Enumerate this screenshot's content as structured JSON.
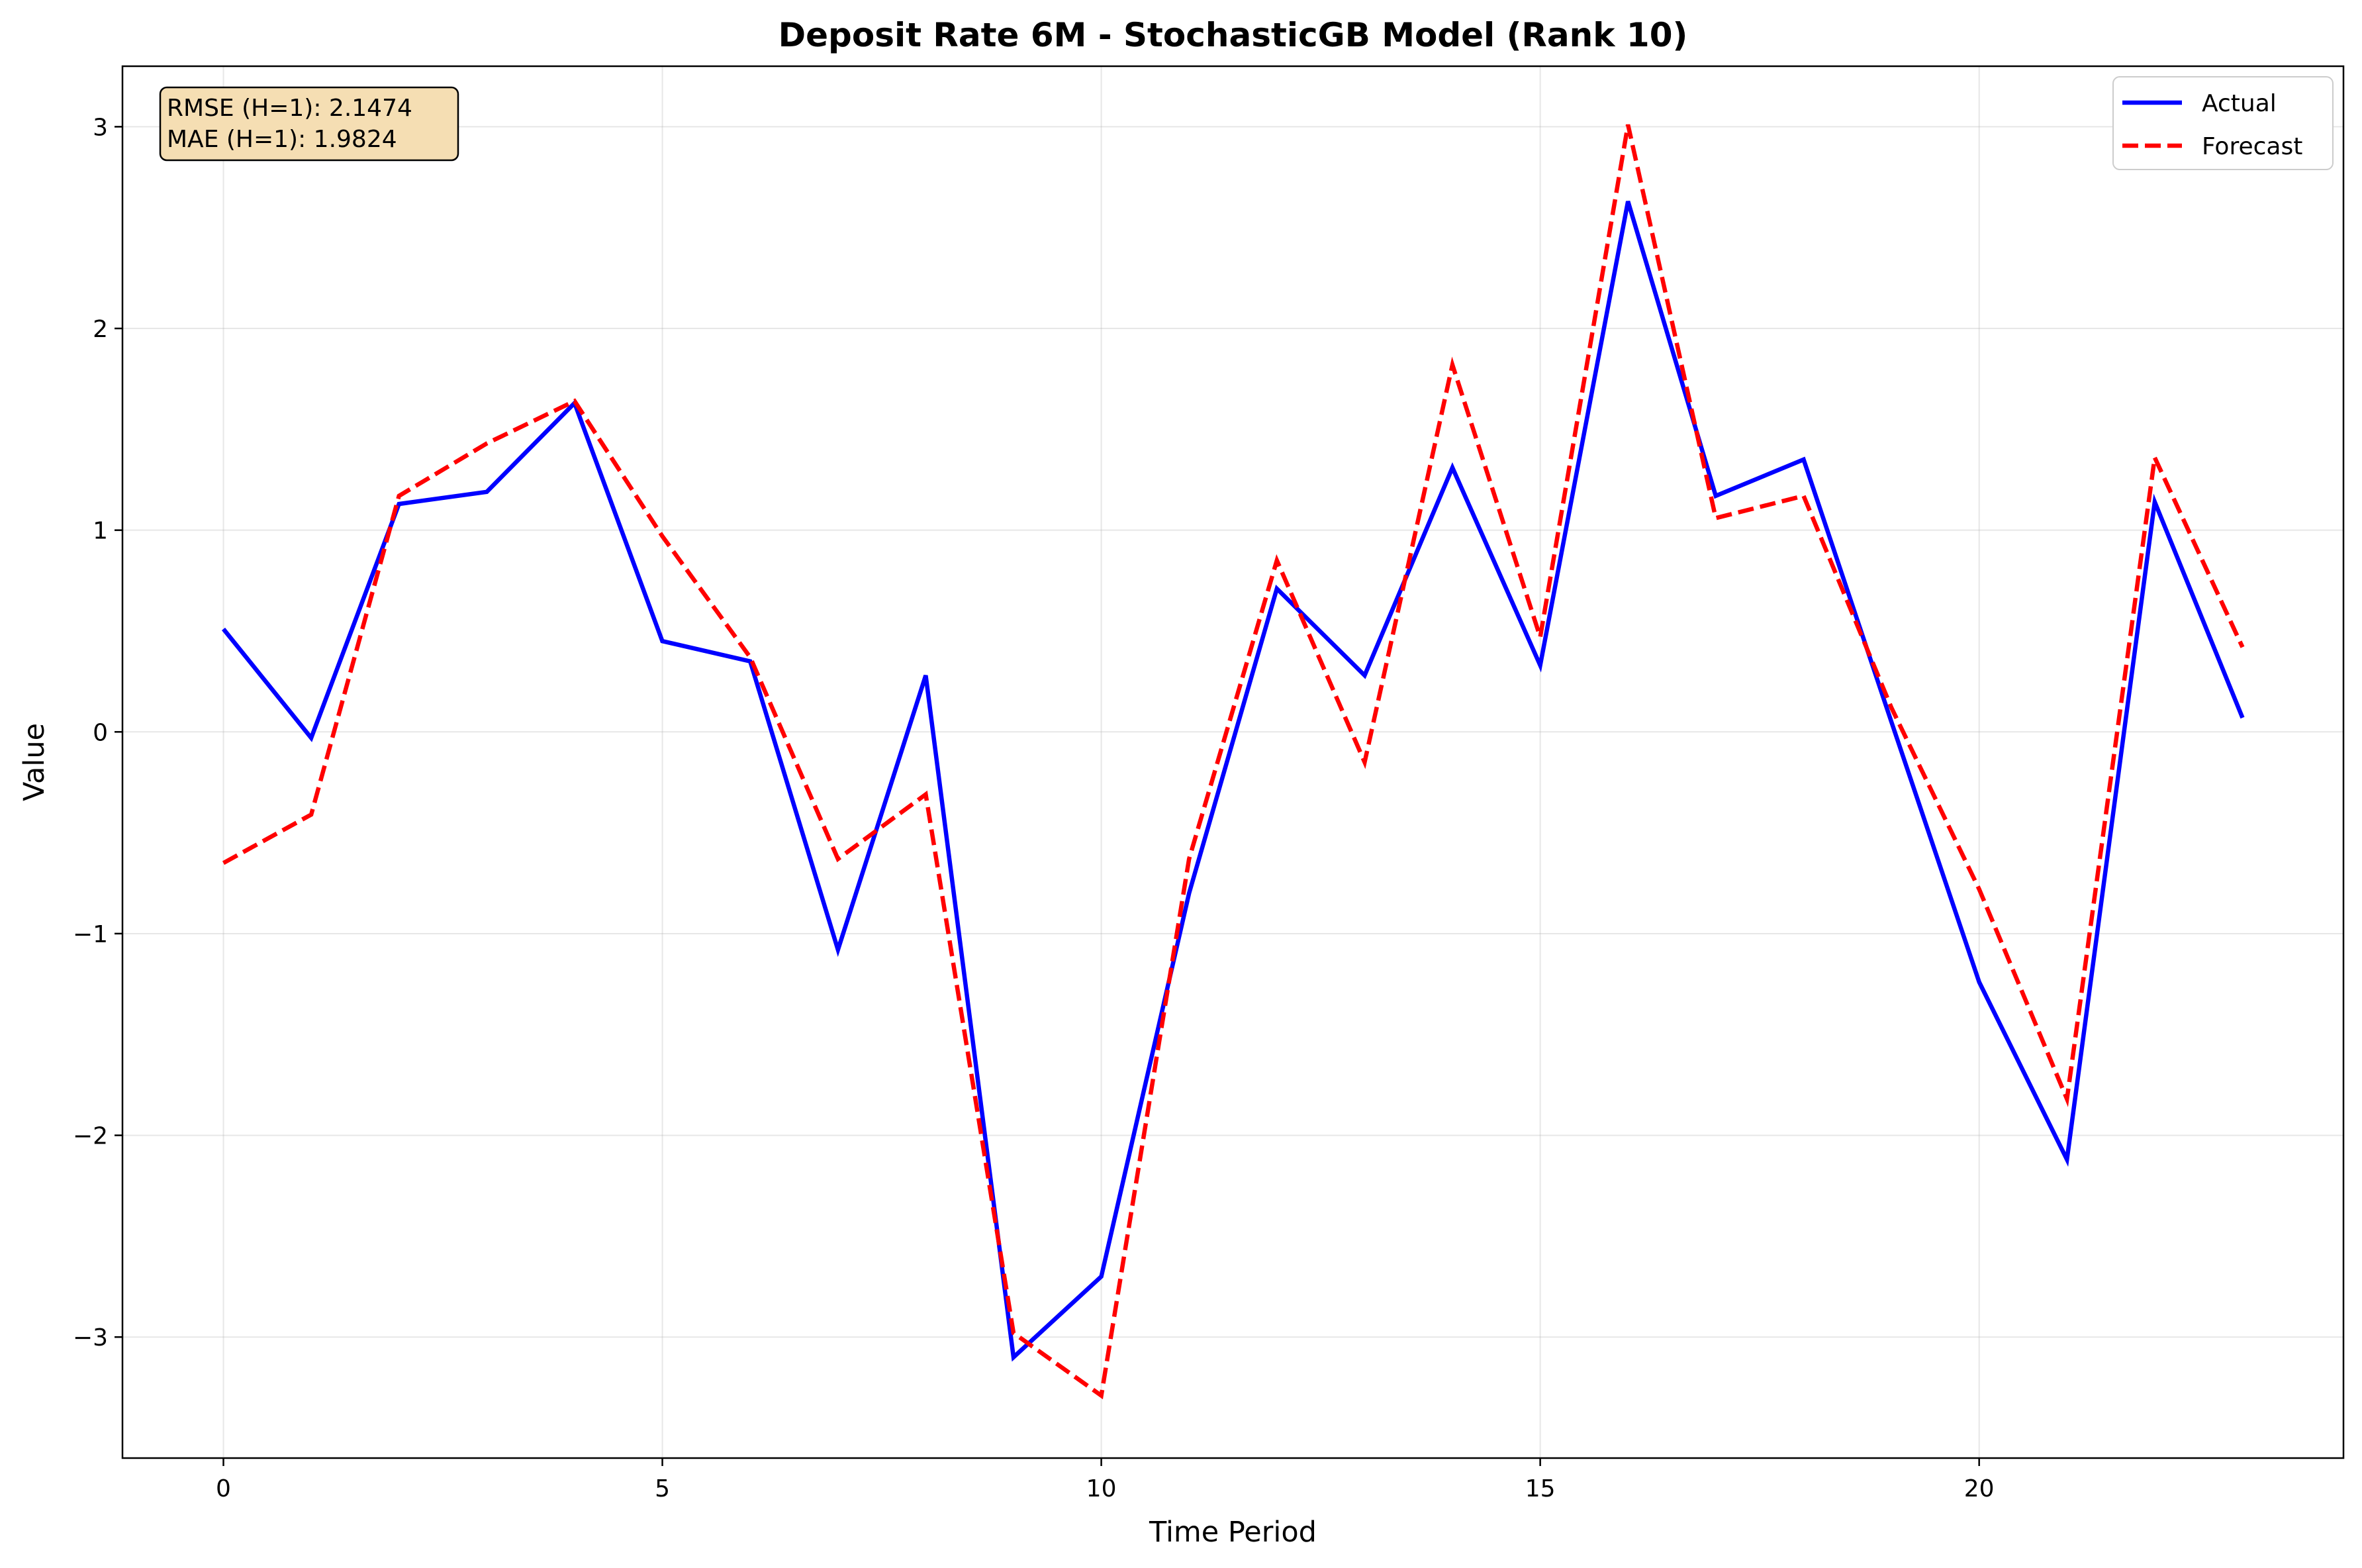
{
  "chart_data": {
    "type": "line",
    "title": "Deposit Rate 6M - StochasticGB Model (Rank 10)",
    "xlabel": "Time Period",
    "ylabel": "Value",
    "x": [
      0,
      1,
      2,
      3,
      4,
      5,
      6,
      7,
      8,
      9,
      10,
      11,
      12,
      13,
      14,
      15,
      16,
      17,
      18,
      19,
      20,
      21,
      22,
      23
    ],
    "xlim": [
      -1.15,
      24.15
    ],
    "ylim": [
      -3.6,
      3.3
    ],
    "xticks": [
      0,
      5,
      10,
      15,
      20
    ],
    "yticks": [
      -3,
      -2,
      -1,
      0,
      1,
      2,
      3
    ],
    "ytick_labels": [
      "−3",
      "−2",
      "−1",
      "0",
      "1",
      "2",
      "3"
    ],
    "grid": true,
    "legend_position": "top-right",
    "series": [
      {
        "name": "Actual",
        "color": "#0000ff",
        "style": "solid",
        "values": [
          0.51,
          -0.03,
          1.13,
          1.19,
          1.63,
          0.45,
          0.35,
          -1.08,
          0.28,
          -3.1,
          -2.7,
          -0.8,
          0.71,
          0.28,
          1.31,
          0.33,
          2.63,
          1.17,
          1.35,
          0.05,
          -1.24,
          -2.12,
          1.14,
          0.07
        ]
      },
      {
        "name": "Forecast",
        "color": "#ff0000",
        "style": "dashed",
        "values": [
          -0.65,
          -0.41,
          1.17,
          1.43,
          1.64,
          0.97,
          0.37,
          -0.63,
          -0.31,
          -2.98,
          -3.29,
          -0.63,
          0.85,
          -0.15,
          1.82,
          0.47,
          3.01,
          1.06,
          1.17,
          0.12,
          -0.78,
          -1.82,
          1.36,
          0.42
        ]
      }
    ],
    "annotation": {
      "lines": [
        "RMSE (H=1): 2.1474",
        "MAE (H=1): 1.9824"
      ],
      "background": "#f5deb3"
    }
  }
}
